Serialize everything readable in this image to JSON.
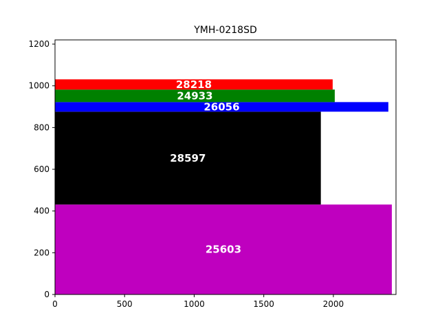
{
  "chart_data": {
    "type": "bar",
    "orientation": "horizontal-stacked-rectangles",
    "title": "YMH-0218SD",
    "xlabel": "",
    "ylabel": "",
    "xlim": [
      0,
      2450
    ],
    "ylim": [
      0,
      1220
    ],
    "xticks": [
      0,
      500,
      1000,
      1500,
      2000
    ],
    "yticks": [
      0,
      200,
      400,
      600,
      800,
      1000,
      1200
    ],
    "grid": false,
    "legend": "none",
    "bars": [
      {
        "label": "25603",
        "y0": 0,
        "y1": 431,
        "width": 2420,
        "color": "#bf00bf"
      },
      {
        "label": "28597",
        "y0": 431,
        "y1": 876,
        "width": 1910,
        "color": "#000000"
      },
      {
        "label": "26056",
        "y0": 876,
        "y1": 922,
        "width": 2395,
        "color": "#0000ff"
      },
      {
        "label": "24933",
        "y0": 922,
        "y1": 982,
        "width": 2010,
        "color": "#008000"
      },
      {
        "label": "28218",
        "y0": 982,
        "y1": 1031,
        "width": 1995,
        "color": "#ff0000"
      }
    ],
    "label_color": "#ffffff"
  }
}
